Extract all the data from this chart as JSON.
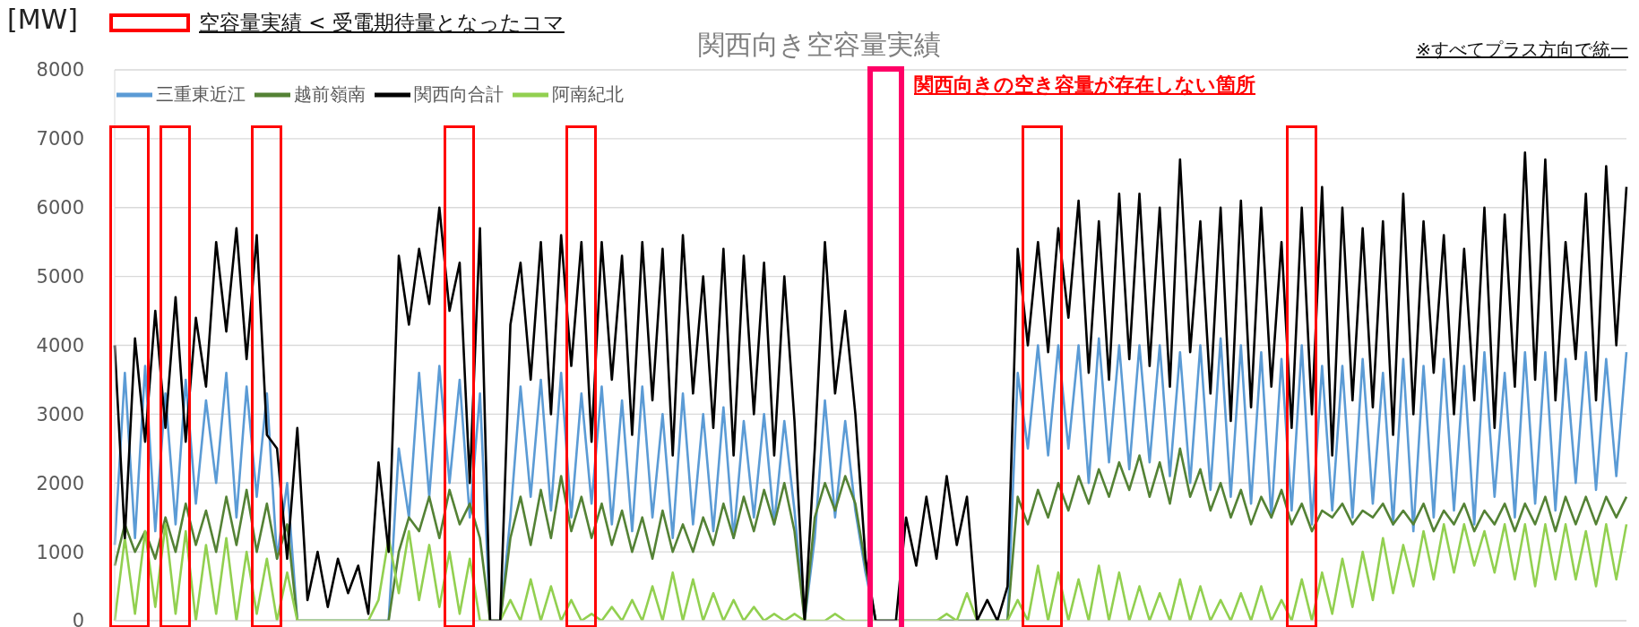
{
  "chart_data": {
    "type": "line",
    "title": "関西向き空容量実績",
    "ylabel": "[MW]",
    "annotations": [
      "空容量実績 < 受電期待量となったコマ",
      "※すべてプラス方向で統一",
      "関西向きの空き容量が存在しない箇所"
    ],
    "categories": [
      null,
      null,
      null,
      null,
      null,
      null,
      null,
      null,
      null,
      null,
      null,
      null,
      null,
      null,
      null,
      null,
      null,
      null,
      null,
      null,
      null,
      null,
      null,
      null,
      null,
      null,
      null,
      null,
      null,
      null,
      null,
      null,
      null,
      null,
      null,
      null,
      null,
      null,
      null,
      null,
      null,
      null,
      null,
      null,
      null,
      null,
      null,
      null,
      null,
      null,
      null,
      null,
      null,
      null,
      null,
      null,
      null,
      null,
      null,
      null,
      null,
      null,
      null,
      null,
      null,
      null,
      null,
      null,
      null,
      null,
      null,
      null,
      null,
      null,
      null,
      null,
      null,
      null,
      null,
      null,
      null,
      null,
      null,
      null,
      null,
      null,
      null,
      null,
      null,
      null,
      null,
      null,
      null,
      null,
      null,
      null,
      null,
      null,
      null,
      null,
      null,
      null,
      null,
      null,
      null,
      null,
      null,
      null,
      null,
      null,
      null,
      null,
      null,
      null,
      null,
      null,
      null,
      null,
      null,
      null,
      null,
      null,
      null,
      null,
      null,
      null,
      null,
      null,
      null,
      null,
      null,
      null,
      null,
      null,
      null,
      null,
      null,
      null,
      null,
      null,
      null,
      null,
      null,
      null,
      null,
      null,
      null,
      null,
      null,
      null
    ],
    "series": [
      {
        "name": "三重東近江",
        "color": "#5b9bd5",
        "values": [
          1100,
          3600,
          1200,
          3700,
          1300,
          3300,
          1400,
          3500,
          1700,
          3200,
          2000,
          3600,
          1500,
          3400,
          1800,
          3300,
          900,
          2000,
          0,
          0,
          0,
          0,
          0,
          0,
          0,
          0,
          0,
          0,
          2500,
          1500,
          3600,
          1800,
          3700,
          2000,
          3500,
          1500,
          3300,
          0,
          0,
          1500,
          3400,
          1800,
          3500,
          1600,
          3600,
          1500,
          3300,
          1700,
          3400,
          1400,
          3200,
          1300,
          3400,
          1500,
          3000,
          1200,
          3300,
          1400,
          3000,
          1300,
          3100,
          1200,
          2900,
          1500,
          3000,
          1400,
          2900,
          1600,
          0,
          1200,
          3200,
          1500,
          2900,
          1600,
          700,
          0,
          0,
          0,
          0,
          0,
          0,
          0,
          0,
          0,
          0,
          0,
          0,
          0,
          0,
          3600,
          2500,
          4000,
          2400,
          4000,
          2500,
          4000,
          2000,
          4100,
          2300,
          4000,
          2200,
          4000,
          2300,
          4000,
          2100,
          3900,
          2000,
          4000,
          1900,
          4100,
          1800,
          4000,
          1700,
          3900,
          1500,
          3800,
          1600,
          4000,
          1400,
          3700,
          1600,
          3700,
          1500,
          3800,
          1700,
          3600,
          1400,
          3800,
          1300,
          3700,
          1500,
          3800,
          1600,
          3700,
          1400,
          3900,
          1800,
          3600,
          1500,
          3900,
          1700,
          3900,
          1600,
          3800,
          2000,
          3900,
          1900,
          3800,
          2100,
          3900
        ]
      },
      {
        "name": "越前嶺南",
        "color": "#548235",
        "values": [
          800,
          1400,
          1000,
          1300,
          900,
          1500,
          1000,
          1700,
          1100,
          1600,
          1000,
          1800,
          1100,
          1900,
          1000,
          1700,
          900,
          1400,
          0,
          0,
          0,
          0,
          0,
          0,
          0,
          0,
          0,
          0,
          1000,
          1500,
          1300,
          1800,
          1200,
          1900,
          1400,
          1700,
          1200,
          0,
          0,
          1200,
          1800,
          1100,
          1900,
          1200,
          2100,
          1300,
          1800,
          1200,
          1700,
          1100,
          1600,
          1000,
          1500,
          900,
          1600,
          1000,
          1400,
          1000,
          1500,
          1100,
          1700,
          1200,
          1800,
          1300,
          1900,
          1400,
          2000,
          1300,
          0,
          1500,
          2000,
          1600,
          2100,
          1700,
          800,
          0,
          0,
          0,
          0,
          0,
          0,
          0,
          0,
          0,
          0,
          0,
          0,
          0,
          0,
          1800,
          1400,
          1900,
          1500,
          2000,
          1600,
          2100,
          1700,
          2200,
          1800,
          2300,
          1900,
          2400,
          1800,
          2300,
          1700,
          2500,
          1800,
          2200,
          1600,
          2000,
          1500,
          1900,
          1400,
          1800,
          1500,
          1900,
          1400,
          1700,
          1300,
          1600,
          1500,
          1700,
          1400,
          1600,
          1500,
          1700,
          1400,
          1600,
          1400,
          1700,
          1300,
          1600,
          1400,
          1700,
          1300,
          1600,
          1400,
          1700,
          1300,
          1700,
          1400,
          1800,
          1300,
          1800,
          1400,
          1800,
          1400,
          1800,
          1500,
          1800
        ]
      },
      {
        "name": "阿南紀北",
        "color": "#92d050",
        "values": [
          0,
          1200,
          100,
          1300,
          200,
          1400,
          100,
          1300,
          0,
          1100,
          100,
          1200,
          0,
          1000,
          100,
          900,
          0,
          700,
          0,
          0,
          0,
          0,
          0,
          0,
          0,
          0,
          300,
          1200,
          400,
          1300,
          300,
          1100,
          200,
          1000,
          100,
          900,
          0,
          0,
          0,
          300,
          0,
          600,
          0,
          500,
          0,
          300,
          0,
          100,
          0,
          200,
          0,
          300,
          0,
          500,
          0,
          700,
          0,
          600,
          0,
          400,
          0,
          300,
          0,
          200,
          0,
          100,
          0,
          100,
          0,
          0,
          0,
          100,
          0,
          0,
          0,
          0,
          0,
          0,
          0,
          0,
          0,
          0,
          100,
          0,
          400,
          0,
          0,
          0,
          0,
          300,
          0,
          800,
          0,
          700,
          0,
          600,
          0,
          800,
          0,
          700,
          0,
          500,
          0,
          400,
          0,
          600,
          0,
          500,
          0,
          300,
          0,
          400,
          0,
          500,
          0,
          300,
          0,
          600,
          0,
          700,
          100,
          900,
          200,
          1000,
          300,
          1200,
          400,
          1100,
          500,
          1300,
          600,
          1400,
          700,
          1400,
          800,
          1300,
          700,
          1400,
          600,
          1400,
          500,
          1400,
          600,
          1400,
          600,
          1300,
          500,
          1400,
          600,
          1400
        ]
      },
      {
        "name": "関西向合計",
        "color": "#000000",
        "values": [
          4000,
          1200,
          4100,
          2600,
          4500,
          2800,
          4700,
          2600,
          4400,
          3400,
          5500,
          4200,
          5700,
          3800,
          5600,
          2700,
          2500,
          900,
          2800,
          300,
          1000,
          200,
          900,
          400,
          800,
          100,
          2300,
          1000,
          5300,
          4300,
          5400,
          4600,
          6000,
          4500,
          5200,
          2000,
          5700,
          0,
          0,
          4300,
          5200,
          3500,
          5500,
          3000,
          5600,
          3700,
          5500,
          2600,
          5500,
          3500,
          5300,
          2700,
          5500,
          3200,
          5400,
          2400,
          5600,
          3300,
          5000,
          2800,
          5400,
          2400,
          5300,
          3000,
          5200,
          2400,
          5000,
          2900,
          0,
          2500,
          5500,
          3300,
          4500,
          3000,
          900,
          0,
          0,
          0,
          1500,
          800,
          1800,
          900,
          2100,
          1100,
          1800,
          0,
          300,
          0,
          500,
          5400,
          4000,
          5500,
          3900,
          5700,
          4400,
          6100,
          3600,
          5800,
          3500,
          6200,
          3800,
          6200,
          3700,
          6000,
          3400,
          6700,
          3900,
          5800,
          3300,
          6000,
          2900,
          6100,
          3100,
          6000,
          3400,
          5500,
          2800,
          6000,
          3000,
          6300,
          2400,
          6000,
          3200,
          5700,
          3100,
          5800,
          2700,
          6200,
          3000,
          5800,
          3600,
          5600,
          3000,
          5400,
          3200,
          6000,
          2800,
          5900,
          3400,
          6800,
          3500,
          6700,
          3200,
          5500,
          3800,
          6200,
          3200,
          6600,
          4000,
          6300
        ]
      }
    ],
    "ylim": [
      0,
      8000
    ],
    "yticks": [
      0,
      1000,
      2000,
      3000,
      4000,
      5000,
      6000,
      7000,
      8000
    ],
    "grid": "y",
    "legend": "top left"
  }
}
